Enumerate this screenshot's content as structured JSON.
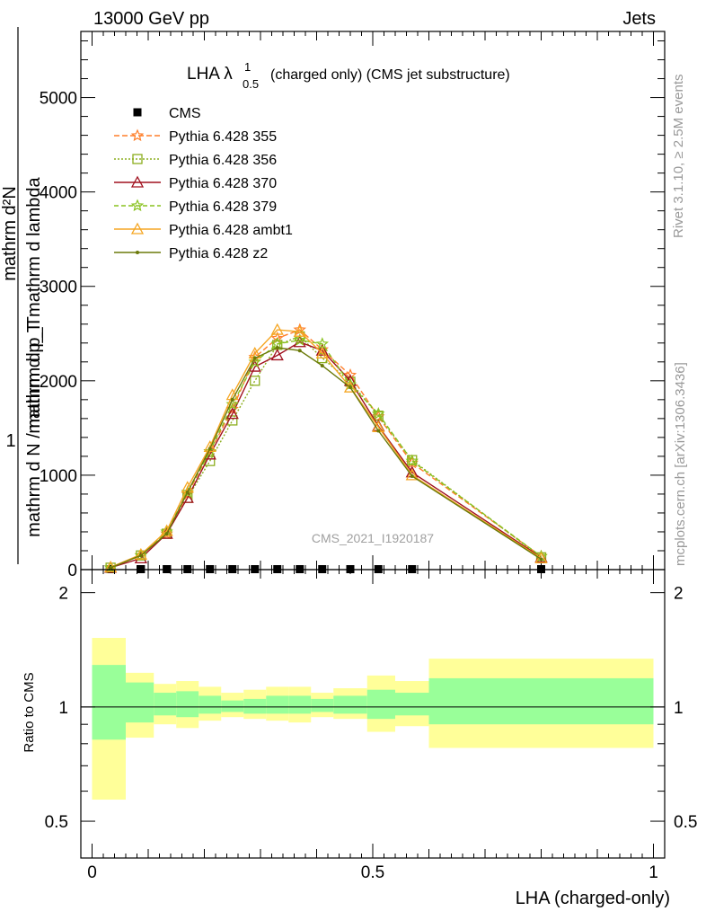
{
  "header": {
    "left": "13000 GeV pp",
    "right": "Jets",
    "plot_title": "LHA λ",
    "plot_title_sup": "1",
    "plot_title_sub": "0.5",
    "plot_title_rest": "(charged only) (CMS jet substructure)",
    "watermark": "CMS_2021_I1920187"
  },
  "side_labels": {
    "rivet": "Rivet 3.1.10, ≥ 2.5M events",
    "mcplots": "mcplots.cern.ch [arXiv:1306.3436]"
  },
  "ylabel": {
    "one": "1",
    "top_line1": "mathrm d²N",
    "top_line2": "mathrm d p_T mathrm d lambda",
    "bottom": "mathrm d N / mathrm d p_T"
  },
  "colors": {
    "cms": "#000000",
    "p355": "#ff7f2a",
    "p356": "#8cae1e",
    "p370": "#a0101e",
    "p379": "#88c21e",
    "ambt1": "#f5a623",
    "z2": "#6b7a0a",
    "band_inner": "#99ff99",
    "band_outer": "#ffff99"
  },
  "chart_data": [
    {
      "type": "line",
      "x": [
        0.033,
        0.087,
        0.133,
        0.17,
        0.21,
        0.25,
        0.29,
        0.33,
        0.37,
        0.41,
        0.46,
        0.51,
        0.57,
        0.8
      ],
      "xlim": [
        -0.02,
        1.02
      ],
      "ylim": [
        0,
        5700
      ],
      "yticks": [
        0,
        1000,
        2000,
        3000,
        4000,
        5000
      ],
      "ytick_labels": [
        "0",
        "1000",
        "2000",
        "3000",
        "4000",
        "5000"
      ],
      "series": [
        {
          "name": "CMS",
          "marker": "square",
          "values": [
            0,
            0,
            0,
            0,
            0,
            0,
            0,
            0,
            0,
            0,
            0,
            0,
            0,
            0
          ]
        },
        {
          "name": "Pythia 6.428 355",
          "marker": "star",
          "dash": "6,3",
          "values": [
            20,
            150,
            380,
            800,
            1250,
            1700,
            2250,
            2450,
            2540,
            2330,
            2060,
            1620,
            1130,
            140
          ]
        },
        {
          "name": "Pythia 6.428 356",
          "marker": "square-open",
          "dash": "2,2",
          "values": [
            20,
            150,
            380,
            760,
            1150,
            1580,
            2000,
            2380,
            2470,
            2240,
            1990,
            1630,
            1160,
            130
          ]
        },
        {
          "name": "Pythia 6.428 370",
          "marker": "triangle-open",
          "dash": "",
          "values": [
            20,
            120,
            380,
            760,
            1220,
            1650,
            2150,
            2270,
            2410,
            2320,
            2000,
            1520,
            1030,
            130
          ]
        },
        {
          "name": "Pythia 6.428 379",
          "marker": "star",
          "dash": "5,3",
          "values": [
            20,
            150,
            400,
            820,
            1250,
            1750,
            2200,
            2390,
            2430,
            2390,
            1960,
            1650,
            1150,
            140
          ]
        },
        {
          "name": "Pythia 6.428 ambt1",
          "marker": "triangle-open",
          "dash": "",
          "values": [
            25,
            160,
            410,
            870,
            1300,
            1850,
            2290,
            2540,
            2520,
            2290,
            1930,
            1510,
            1000,
            120
          ]
        },
        {
          "name": "Pythia 6.428 z2",
          "marker": "dot",
          "dash": "",
          "values": [
            20,
            150,
            380,
            820,
            1280,
            1800,
            2240,
            2350,
            2320,
            2160,
            1930,
            1470,
            990,
            110
          ]
        }
      ]
    },
    {
      "type": "area",
      "ylabel": "Ratio to CMS",
      "ylim": [
        0.4,
        2.3
      ],
      "yticks": [
        0.5,
        1,
        2
      ],
      "ytick_labels": [
        "0.5",
        "1",
        "2"
      ],
      "xticks": [
        0,
        0.5,
        1
      ],
      "xtick_labels": [
        "0",
        "0.5",
        "1"
      ],
      "xlabel": "LHA (charged-only)",
      "reference": 1,
      "bins": [
        {
          "lo": 0.0,
          "hi": 0.06,
          "inner": [
            0.82,
            1.29
          ],
          "outer": [
            0.57,
            1.52
          ]
        },
        {
          "lo": 0.06,
          "hi": 0.11,
          "inner": [
            0.91,
            1.16
          ],
          "outer": [
            0.83,
            1.23
          ]
        },
        {
          "lo": 0.11,
          "hi": 0.15,
          "inner": [
            0.95,
            1.09
          ],
          "outer": [
            0.9,
            1.15
          ]
        },
        {
          "lo": 0.15,
          "hi": 0.19,
          "inner": [
            0.94,
            1.1
          ],
          "outer": [
            0.88,
            1.17
          ]
        },
        {
          "lo": 0.19,
          "hi": 0.23,
          "inner": [
            0.96,
            1.07
          ],
          "outer": [
            0.92,
            1.13
          ]
        },
        {
          "lo": 0.23,
          "hi": 0.27,
          "inner": [
            0.97,
            1.04
          ],
          "outer": [
            0.94,
            1.09
          ]
        },
        {
          "lo": 0.27,
          "hi": 0.31,
          "inner": [
            0.96,
            1.05
          ],
          "outer": [
            0.93,
            1.11
          ]
        },
        {
          "lo": 0.31,
          "hi": 0.35,
          "inner": [
            0.96,
            1.07
          ],
          "outer": [
            0.92,
            1.13
          ]
        },
        {
          "lo": 0.35,
          "hi": 0.39,
          "inner": [
            0.96,
            1.07
          ],
          "outer": [
            0.91,
            1.13
          ]
        },
        {
          "lo": 0.39,
          "hi": 0.43,
          "inner": [
            0.97,
            1.05
          ],
          "outer": [
            0.94,
            1.09
          ]
        },
        {
          "lo": 0.43,
          "hi": 0.49,
          "inner": [
            0.96,
            1.07
          ],
          "outer": [
            0.93,
            1.12
          ]
        },
        {
          "lo": 0.49,
          "hi": 0.54,
          "inner": [
            0.93,
            1.11
          ],
          "outer": [
            0.86,
            1.21
          ]
        },
        {
          "lo": 0.54,
          "hi": 0.6,
          "inner": [
            0.95,
            1.09
          ],
          "outer": [
            0.89,
            1.17
          ]
        },
        {
          "lo": 0.6,
          "hi": 1.0,
          "inner": [
            0.9,
            1.19
          ],
          "outer": [
            0.78,
            1.34
          ]
        }
      ]
    }
  ]
}
